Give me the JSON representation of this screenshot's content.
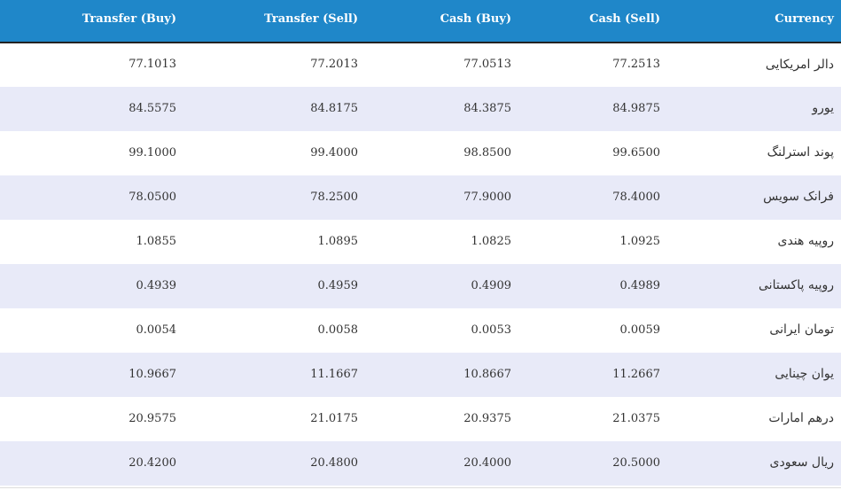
{
  "header": {
    "transfer_buy": "Transfer (Buy)",
    "transfer_sell": "Transfer (Sell)",
    "cash_buy": "Cash (Buy)",
    "cash_sell": "Cash (Sell)",
    "currency": "Currency"
  },
  "colors": {
    "header_bg": "#1f87c9",
    "header_text": "#ffffff",
    "row_alt_bg": "#e8eaf8"
  },
  "rows": [
    {
      "transfer_buy": "77.1013",
      "transfer_sell": "77.2013",
      "cash_buy": "77.0513",
      "cash_sell": "77.2513",
      "currency": "دالر امریکایی"
    },
    {
      "transfer_buy": "84.5575",
      "transfer_sell": "84.8175",
      "cash_buy": "84.3875",
      "cash_sell": "84.9875",
      "currency": "یورو"
    },
    {
      "transfer_buy": "99.1000",
      "transfer_sell": "99.4000",
      "cash_buy": "98.8500",
      "cash_sell": "99.6500",
      "currency": "پوند استرلنگ"
    },
    {
      "transfer_buy": "78.0500",
      "transfer_sell": "78.2500",
      "cash_buy": "77.9000",
      "cash_sell": "78.4000",
      "currency": "فرانک سویس"
    },
    {
      "transfer_buy": "1.0855",
      "transfer_sell": "1.0895",
      "cash_buy": "1.0825",
      "cash_sell": "1.0925",
      "currency": "روپیه هندی"
    },
    {
      "transfer_buy": "0.4939",
      "transfer_sell": "0.4959",
      "cash_buy": "0.4909",
      "cash_sell": "0.4989",
      "currency": "روپیه پاکستانی"
    },
    {
      "transfer_buy": "0.0054",
      "transfer_sell": "0.0058",
      "cash_buy": "0.0053",
      "cash_sell": "0.0059",
      "currency": "تومان ایرانی"
    },
    {
      "transfer_buy": "10.9667",
      "transfer_sell": "11.1667",
      "cash_buy": "10.8667",
      "cash_sell": "11.2667",
      "currency": "یوان چینایی"
    },
    {
      "transfer_buy": "20.9575",
      "transfer_sell": "21.0175",
      "cash_buy": "20.9375",
      "cash_sell": "21.0375",
      "currency": "درهم امارات"
    },
    {
      "transfer_buy": "20.4200",
      "transfer_sell": "20.4800",
      "cash_buy": "20.4000",
      "cash_sell": "20.5000",
      "currency": "ریال سعودی"
    }
  ]
}
